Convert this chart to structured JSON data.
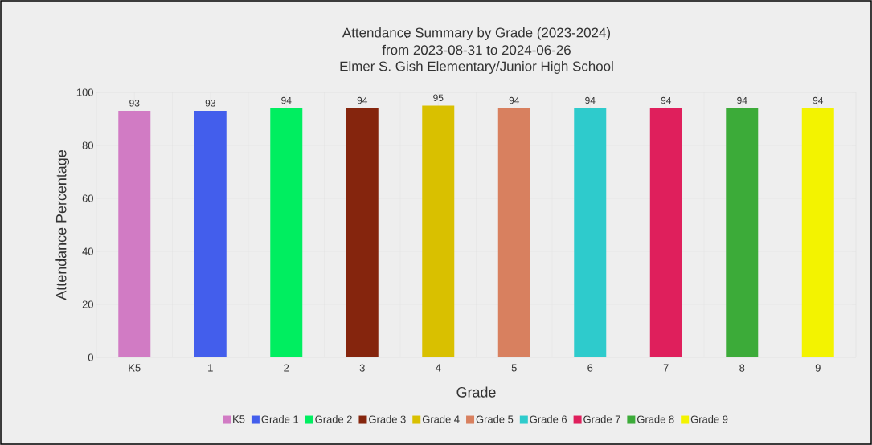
{
  "chart_data": {
    "type": "bar",
    "title": "Attendance Summary by Grade (2023-2024)",
    "subtitle": "from 2023-08-31 to 2024-06-26",
    "annotations": [
      "Elmer S. Gish Elementary/Junior High School"
    ],
    "xlabel": "Grade",
    "ylabel": "Attendance Percentage",
    "categories": [
      "K5",
      "1",
      "2",
      "3",
      "4",
      "5",
      "6",
      "7",
      "8",
      "9"
    ],
    "series": [
      {
        "name": "K5",
        "color": "#d17bc4",
        "values": [
          93,
          null,
          null,
          null,
          null,
          null,
          null,
          null,
          null,
          null
        ]
      },
      {
        "name": "Grade 1",
        "color": "#435eec",
        "values": [
          null,
          93,
          null,
          null,
          null,
          null,
          null,
          null,
          null,
          null
        ]
      },
      {
        "name": "Grade 2",
        "color": "#00ee60",
        "values": [
          null,
          null,
          94,
          null,
          null,
          null,
          null,
          null,
          null,
          null
        ]
      },
      {
        "name": "Grade 3",
        "color": "#85250d",
        "values": [
          null,
          null,
          null,
          94,
          null,
          null,
          null,
          null,
          null,
          null
        ]
      },
      {
        "name": "Grade 4",
        "color": "#d9c000",
        "values": [
          null,
          null,
          null,
          null,
          95,
          null,
          null,
          null,
          null,
          null
        ]
      },
      {
        "name": "Grade 5",
        "color": "#d8805f",
        "values": [
          null,
          null,
          null,
          null,
          null,
          94,
          null,
          null,
          null,
          null
        ]
      },
      {
        "name": "Grade 6",
        "color": "#2ecbcc",
        "values": [
          null,
          null,
          null,
          null,
          null,
          null,
          94,
          null,
          null,
          null
        ]
      },
      {
        "name": "Grade 7",
        "color": "#df1f5c",
        "values": [
          null,
          null,
          null,
          null,
          null,
          null,
          null,
          94,
          null,
          null
        ]
      },
      {
        "name": "Grade 8",
        "color": "#3cab39",
        "values": [
          null,
          null,
          null,
          null,
          null,
          null,
          null,
          null,
          94,
          null
        ]
      },
      {
        "name": "Grade 9",
        "color": "#f3f300",
        "values": [
          null,
          null,
          null,
          null,
          null,
          null,
          null,
          null,
          null,
          94
        ]
      }
    ],
    "ylim": [
      0,
      100
    ],
    "yticks": [
      0,
      20,
      40,
      60,
      80,
      100
    ],
    "grid": true,
    "legend": "bottom",
    "data_labels": true
  }
}
